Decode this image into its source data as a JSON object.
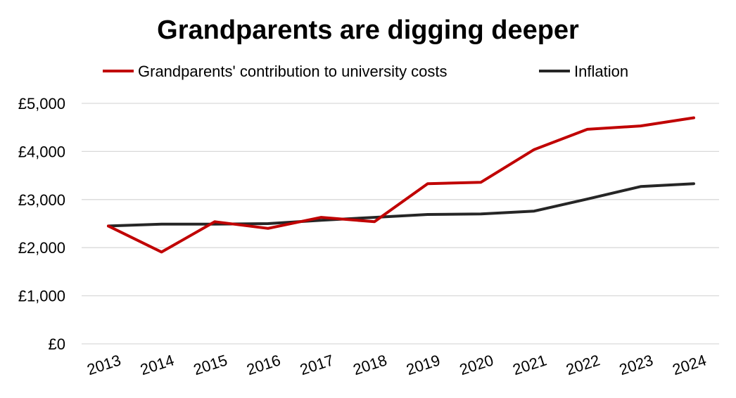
{
  "chart_data": {
    "type": "line",
    "title": "Grandparents are digging deeper",
    "xlabel": "",
    "ylabel": "",
    "categories": [
      "2013",
      "2014",
      "2015",
      "2016",
      "2017",
      "2018",
      "2019",
      "2020",
      "2021",
      "2022",
      "2023",
      "2024"
    ],
    "ylim": [
      0,
      5000
    ],
    "yticks": [
      0,
      1000,
      2000,
      3000,
      4000,
      5000
    ],
    "ytick_labels": [
      "£0",
      "£1,000",
      "£2,000",
      "£3,000",
      "£4,000",
      "£5,000"
    ],
    "grid": true,
    "legend_position": "top",
    "series": [
      {
        "name": "Grandparents' contribution to university costs",
        "color": "#c00000",
        "values": [
          2450,
          1910,
          2540,
          2400,
          2630,
          2540,
          3330,
          3360,
          4040,
          4460,
          4530,
          4700
        ]
      },
      {
        "name": "Inflation",
        "color": "#262626",
        "values": [
          2450,
          2490,
          2490,
          2500,
          2570,
          2630,
          2690,
          2700,
          2760,
          3010,
          3270,
          3330
        ]
      }
    ]
  }
}
